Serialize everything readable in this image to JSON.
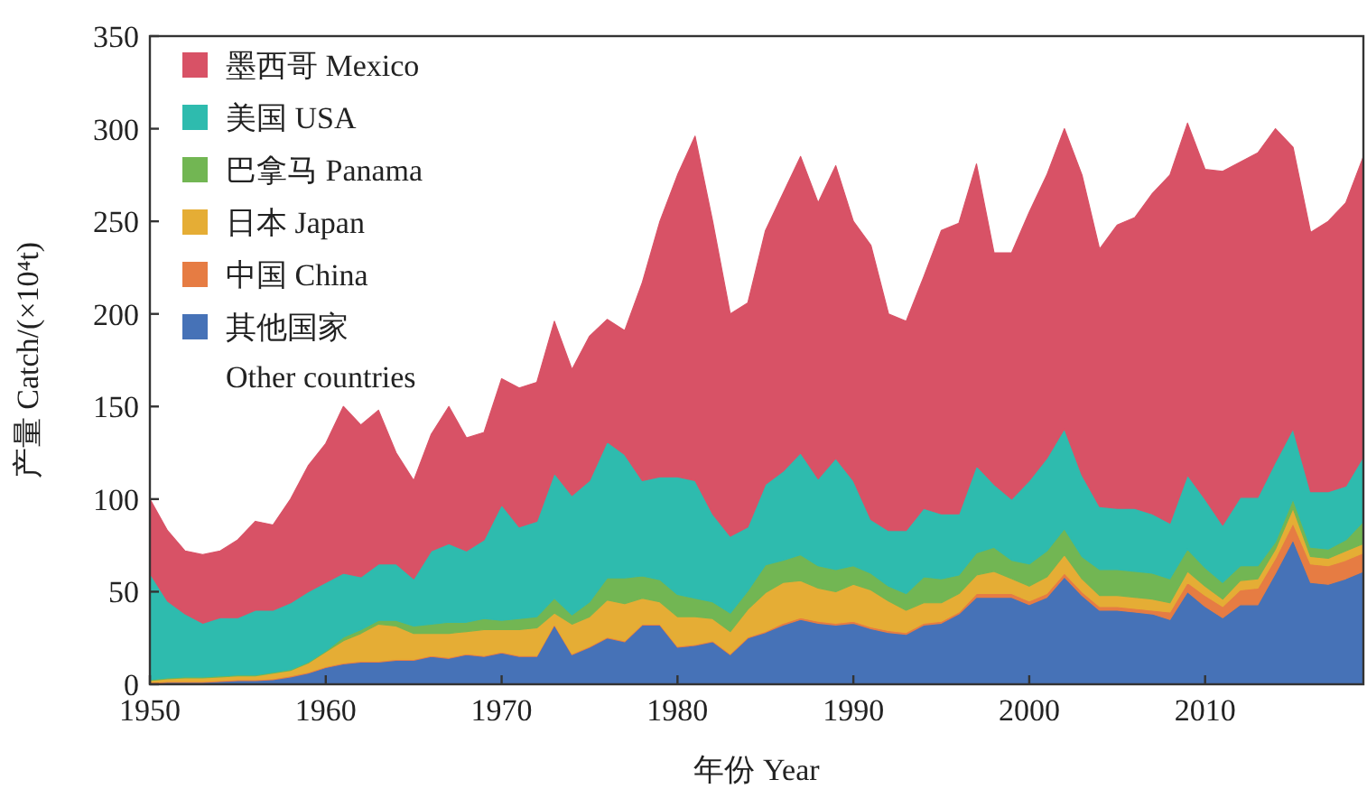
{
  "chart_data": {
    "type": "area",
    "stacked": true,
    "legend": "top left",
    "xlabel": "年份 Year",
    "ylabel": "产量 Catch/(×10⁴t)",
    "xlim": [
      1950,
      2019
    ],
    "ylim": [
      0,
      350
    ],
    "xticks": [
      1950,
      1960,
      1970,
      1980,
      1990,
      2000,
      2010
    ],
    "yticks": [
      0,
      50,
      100,
      150,
      200,
      250,
      300,
      350
    ],
    "x": [
      1950,
      1951,
      1952,
      1953,
      1954,
      1955,
      1956,
      1957,
      1958,
      1959,
      1960,
      1961,
      1962,
      1963,
      1964,
      1965,
      1966,
      1967,
      1968,
      1969,
      1970,
      1971,
      1972,
      1973,
      1974,
      1975,
      1976,
      1977,
      1978,
      1979,
      1980,
      1981,
      1982,
      1983,
      1984,
      1985,
      1986,
      1987,
      1988,
      1989,
      1990,
      1991,
      1992,
      1993,
      1994,
      1995,
      1996,
      1997,
      1998,
      1999,
      2000,
      2001,
      2002,
      2003,
      2004,
      2005,
      2006,
      2007,
      2008,
      2009,
      2010,
      2011,
      2012,
      2013,
      2014,
      2015,
      2016,
      2017,
      2018,
      2019
    ],
    "series": [
      {
        "name": "其他国家\nOther countries",
        "color": "#4672b7",
        "values": [
          0.5,
          1,
          1,
          1,
          1.5,
          2,
          2,
          2.5,
          4,
          6,
          9,
          11,
          12,
          12,
          13,
          13,
          15,
          14,
          16,
          15,
          17,
          15,
          15,
          32,
          16,
          20,
          25,
          23,
          32,
          32,
          20,
          21,
          23,
          16,
          25,
          28,
          32,
          35,
          33,
          32,
          33,
          30,
          28,
          27,
          32,
          33,
          38,
          47,
          47,
          47,
          43,
          47,
          58,
          48,
          40,
          40,
          39,
          38,
          35,
          50,
          42,
          36,
          43,
          43,
          60,
          78,
          55,
          54,
          57,
          61
        ]
      },
      {
        "name": "中国 China",
        "color": "#e67c43",
        "values": [
          0.5,
          0.5,
          0.5,
          0.5,
          0.5,
          0.5,
          0.5,
          0.5,
          0.5,
          0.5,
          0.5,
          0.5,
          0.5,
          0.5,
          0.5,
          0.5,
          0.5,
          0.5,
          0.5,
          0.5,
          0.5,
          0.5,
          0.5,
          0.5,
          0.5,
          0.5,
          0.5,
          0.5,
          0.5,
          0.5,
          0.5,
          0.5,
          0.5,
          0.5,
          0.5,
          0.5,
          1,
          1,
          1,
          1,
          1,
          1,
          1,
          1,
          1,
          1,
          1,
          2,
          2,
          2,
          2,
          2,
          2,
          2,
          2,
          2,
          2,
          2,
          4,
          5,
          6,
          6,
          8,
          9,
          8,
          9,
          10,
          10,
          10,
          10
        ]
      },
      {
        "name": "日本 Japan",
        "color": "#e5ad35",
        "values": [
          1,
          1.5,
          2,
          2,
          2,
          2,
          2,
          3,
          3,
          5,
          8,
          12,
          15,
          20,
          18,
          14,
          12,
          13,
          12,
          14,
          12,
          14,
          15,
          6,
          16,
          16,
          20,
          20,
          14,
          12,
          16,
          15,
          12,
          12,
          15,
          21,
          22,
          20,
          18,
          17,
          20,
          20,
          16,
          12,
          11,
          10,
          10,
          10,
          12,
          8,
          8,
          9,
          10,
          7,
          6,
          6,
          6,
          6,
          5,
          6,
          5,
          4,
          5,
          5,
          5,
          8,
          4,
          4,
          5,
          5
        ]
      },
      {
        "name": "巴拿马 Panama",
        "color": "#72b653",
        "values": [
          0.5,
          0.5,
          0.5,
          0.5,
          0.5,
          0.5,
          0.5,
          0.5,
          0.5,
          0.5,
          0.5,
          2,
          2,
          2,
          3,
          4,
          5,
          6,
          5,
          6,
          5,
          6,
          6,
          8,
          5,
          8,
          12,
          14,
          12,
          12,
          12,
          10,
          9,
          10,
          10,
          15,
          12,
          14,
          12,
          12,
          10,
          9,
          8,
          9,
          14,
          13,
          10,
          12,
          13,
          10,
          12,
          14,
          14,
          12,
          14,
          14,
          14,
          14,
          13,
          12,
          10,
          9,
          8,
          7,
          4,
          5,
          5,
          5,
          6,
          12
        ]
      },
      {
        "name": "美国 USA",
        "color": "#2ebbae",
        "values": [
          57.5,
          41.5,
          34,
          29,
          31.5,
          31,
          35,
          33.5,
          36,
          38,
          37,
          34.5,
          28.5,
          30.5,
          30.5,
          25.5,
          39.5,
          42.5,
          38.5,
          42.5,
          62.5,
          49.5,
          51.5,
          67.5,
          64.5,
          65.5,
          73.5,
          66.5,
          51.5,
          55.5,
          63.5,
          63.5,
          47.5,
          41.5,
          34.5,
          43.5,
          48,
          55,
          47,
          60,
          46,
          29,
          30,
          34,
          37,
          35,
          33,
          47,
          34,
          33,
          45,
          50,
          54,
          44,
          34,
          33,
          34,
          32,
          30,
          40,
          37,
          31,
          37,
          37,
          43,
          38,
          30,
          31,
          29,
          35
        ]
      },
      {
        "name": "墨西哥 Mexico",
        "color": "#d85266",
        "values": [
          40,
          38,
          34,
          37,
          36,
          42,
          48,
          46,
          56,
          68,
          75,
          90,
          82,
          83,
          60,
          53,
          63,
          74,
          61,
          58,
          68,
          75,
          75,
          82,
          68,
          78,
          66,
          67,
          107,
          138,
          163,
          186,
          158,
          120,
          121,
          137,
          150,
          160,
          149,
          158,
          140,
          148,
          117,
          113,
          125,
          153,
          157,
          163,
          125,
          133,
          145,
          153,
          162,
          162,
          139,
          153,
          157,
          173,
          188,
          190,
          178,
          191,
          181,
          186,
          180,
          152,
          140,
          146,
          153,
          162
        ]
      }
    ]
  }
}
